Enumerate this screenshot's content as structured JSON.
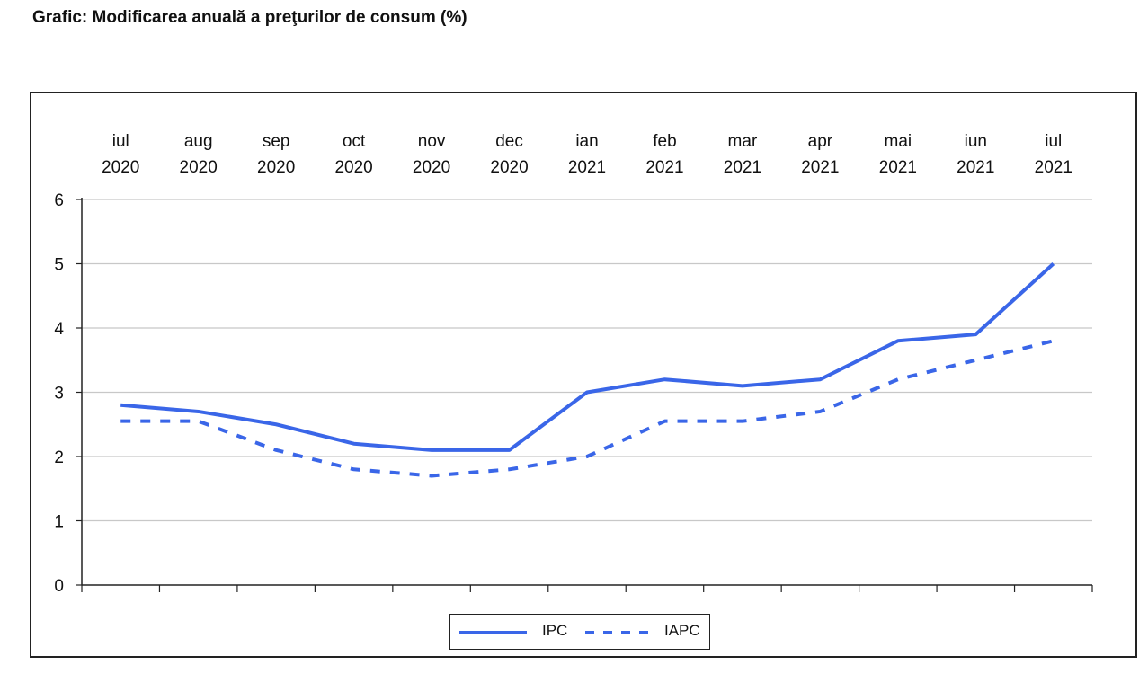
{
  "page": {
    "title": "Grafic: Modificarea anuală a preţurilor de consum (%)"
  },
  "chart_data": {
    "type": "line",
    "title": "Grafic: Modificarea anuală a preţurilor de consum (%)",
    "categories": [
      [
        "iul",
        "2020"
      ],
      [
        "aug",
        "2020"
      ],
      [
        "sep",
        "2020"
      ],
      [
        "oct",
        "2020"
      ],
      [
        "nov",
        "2020"
      ],
      [
        "dec",
        "2020"
      ],
      [
        "ian",
        "2021"
      ],
      [
        "feb",
        "2021"
      ],
      [
        "mar",
        "2021"
      ],
      [
        "apr",
        "2021"
      ],
      [
        "mai",
        "2021"
      ],
      [
        "iun",
        "2021"
      ],
      [
        "iul",
        "2021"
      ]
    ],
    "x_axis_position": "top",
    "ylim": [
      0,
      6
    ],
    "yticks": [
      "0",
      "1",
      "2",
      "3",
      "4",
      "5",
      "6"
    ],
    "grid": true,
    "legend_position": "bottom-center",
    "series": [
      {
        "name": "IPC",
        "style": "solid",
        "color": "#3a66e8",
        "values": [
          2.8,
          2.7,
          2.5,
          2.2,
          2.1,
          2.1,
          3.0,
          3.2,
          3.1,
          3.2,
          3.8,
          3.9,
          5.0
        ]
      },
      {
        "name": "IAPC",
        "style": "dashed",
        "color": "#3a66e8",
        "values": [
          2.55,
          2.55,
          2.1,
          1.8,
          1.7,
          1.8,
          2.0,
          2.55,
          2.55,
          2.7,
          3.2,
          3.5,
          3.8
        ]
      }
    ]
  }
}
